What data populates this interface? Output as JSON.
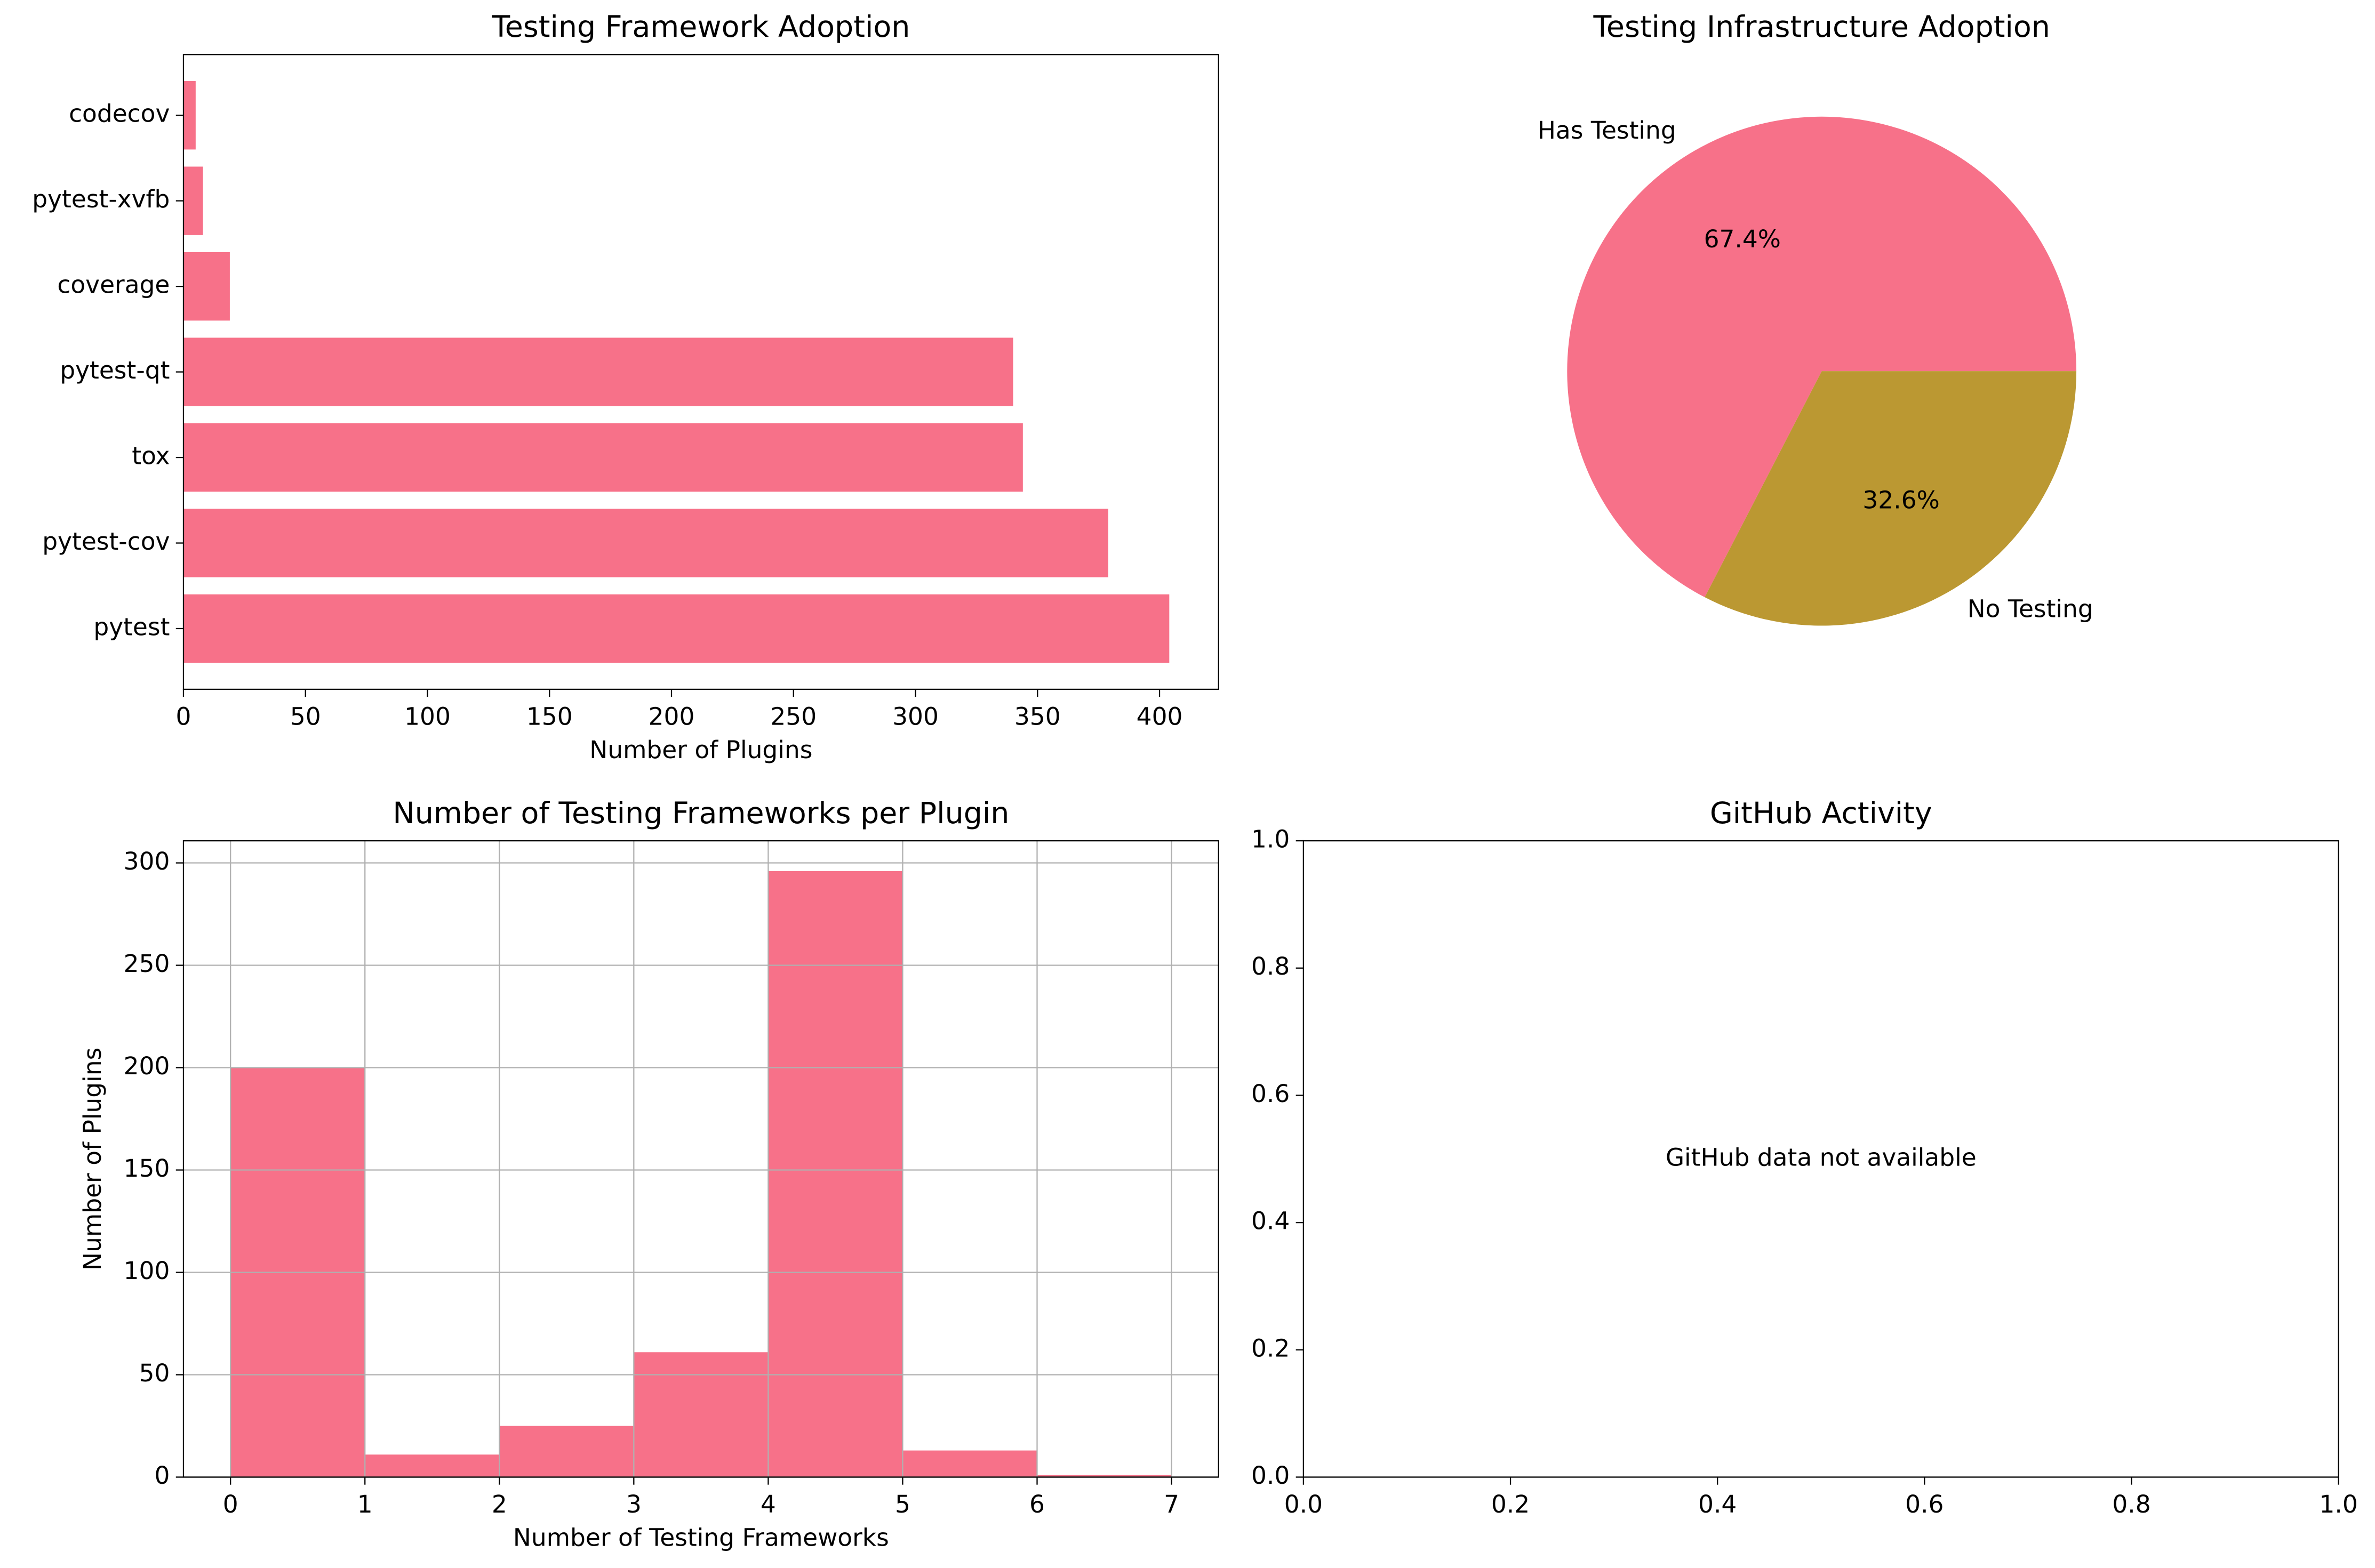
{
  "chart_data": [
    {
      "type": "bar",
      "orientation": "horizontal",
      "title": "Testing Framework Adoption",
      "xlabel": "Number of Plugins",
      "categories": [
        "pytest",
        "pytest-cov",
        "tox",
        "pytest-qt",
        "coverage",
        "pytest-xvfb",
        "codecov"
      ],
      "values": [
        404,
        379,
        344,
        340,
        19,
        8,
        5
      ],
      "color": "#f77189",
      "xlim": [
        0,
        424.2
      ],
      "xticks": [
        0,
        50,
        100,
        150,
        200,
        250,
        300,
        350,
        400
      ],
      "grid": false
    },
    {
      "type": "pie",
      "title": "Testing Infrastructure Adoption",
      "categories": [
        "Has Testing",
        "No Testing"
      ],
      "values": [
        67.4,
        32.6
      ],
      "value_labels": [
        "67.4%",
        "32.6%"
      ],
      "colors": [
        "#f77189",
        "#bb9832"
      ]
    },
    {
      "type": "histogram",
      "title": "Number of Testing Frameworks per Plugin",
      "xlabel": "Number of Testing Frameworks",
      "ylabel": "Number of Plugins",
      "bins": [
        0,
        1,
        2,
        3,
        4,
        5,
        6,
        7
      ],
      "values": [
        200,
        11,
        25,
        61,
        296,
        13,
        1
      ],
      "color": "#f77189",
      "xlim": [
        -0.35,
        7.35
      ],
      "xticks": [
        0,
        1,
        2,
        3,
        4,
        5,
        6,
        7
      ],
      "ylim": [
        0,
        310.8
      ],
      "yticks": [
        0,
        50,
        100,
        150,
        200,
        250,
        300
      ],
      "grid": true
    },
    {
      "type": "text",
      "title": "GitHub Activity",
      "annotation": "GitHub data not available",
      "xlim": [
        0,
        1
      ],
      "xticks": [
        {
          "value": 0,
          "label": "0.0"
        },
        {
          "value": 0.2,
          "label": "0.2"
        },
        {
          "value": 0.4,
          "label": "0.4"
        },
        {
          "value": 0.6,
          "label": "0.6"
        },
        {
          "value": 0.8,
          "label": "0.8"
        },
        {
          "value": 1,
          "label": "1.0"
        }
      ],
      "ylim": [
        0,
        1
      ],
      "yticks": [
        {
          "value": 0,
          "label": "0.0"
        },
        {
          "value": 0.2,
          "label": "0.2"
        },
        {
          "value": 0.4,
          "label": "0.4"
        },
        {
          "value": 0.6,
          "label": "0.6"
        },
        {
          "value": 0.8,
          "label": "0.8"
        },
        {
          "value": 1,
          "label": "1.0"
        }
      ],
      "grid": false
    }
  ]
}
